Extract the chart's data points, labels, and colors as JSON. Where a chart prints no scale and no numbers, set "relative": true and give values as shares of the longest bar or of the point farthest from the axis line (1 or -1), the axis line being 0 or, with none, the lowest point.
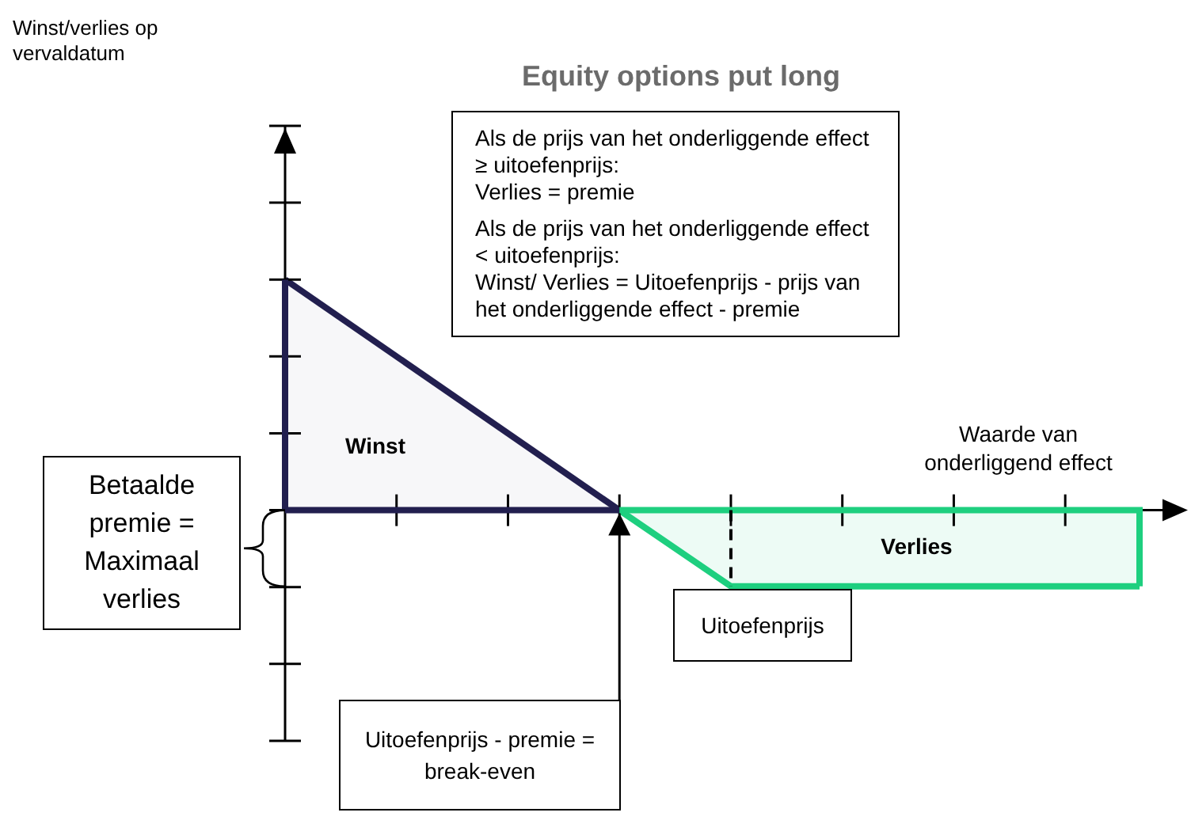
{
  "chart_data": {
    "type": "area",
    "title": "Equity options put long",
    "xlabel": "Waarde van onderliggend effect",
    "relative": true,
    "categories": [
      null,
      null,
      null,
      null,
      null,
      null,
      null,
      null,
      null,
      null,
      null,
      null,
      null,
      null,
      null,
      null,
      null,
      null,
      null,
      null,
      null,
      null,
      null,
      null
    ],
    "series": [
      {
        "name": "Winst",
        "color": "#221f4f",
        "values": [
          1,
          null,
          null,
          null,
          null,
          null,
          null,
          null,
          null,
          0,
          null,
          null,
          null,
          null,
          null,
          null,
          null,
          null,
          null,
          null,
          null,
          null,
          null,
          null
        ]
      },
      {
        "name": "Verlies",
        "color": "#1ecf7f",
        "values": [
          null,
          null,
          null,
          null,
          null,
          null,
          null,
          null,
          null,
          0,
          null,
          null,
          -0.33,
          null,
          null,
          null,
          null,
          null,
          null,
          null,
          null,
          null,
          null,
          -0.33
        ]
      }
    ],
    "annotations": [
      "Als de prijs van het onderliggende effect ≥ uitoefenprijs:\nVerlies = premie\nAls de prijs van het onderliggende effect < uitoefenprijs:\nWinst/ Verlies = Uitoefenprijs - prijs van het onderliggende effect - premie",
      "Betaalde premie = Maximaal verlies",
      "Uitoefenprijs - premie = break-even",
      {
        "text": "Uitoefenprijs",
        "y": -0.33
      },
      "Winst/verlies op vervaldatum"
    ]
  }
}
